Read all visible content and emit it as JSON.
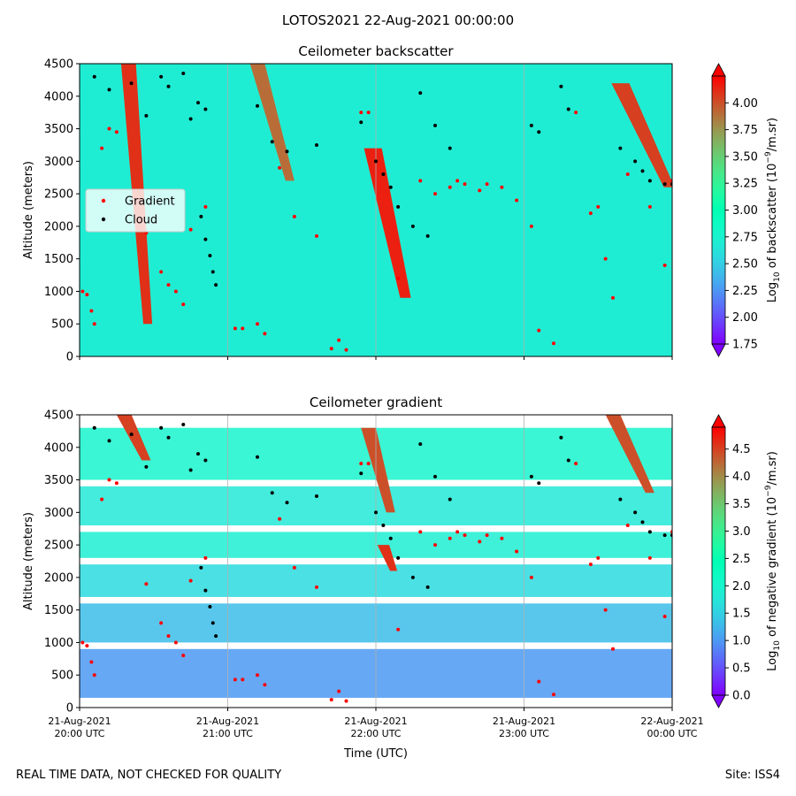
{
  "figure": {
    "title": "LOTOS2021 22-Aug-2021 00:00:00",
    "footer_left": "REAL TIME DATA, NOT CHECKED FOR QUALITY",
    "footer_right": "Site: ISS4"
  },
  "chart_data": [
    {
      "type": "heatmap",
      "title": "Ceilometer backscatter",
      "xlabel": "",
      "ylabel": "Altitude (meters)",
      "x_ticks": [
        "21-Aug-2021\n20:00 UTC",
        "21-Aug-2021\n21:00 UTC",
        "21-Aug-2021\n22:00 UTC",
        "21-Aug-2021\n23:00 UTC",
        "22-Aug-2021\n00:00 UTC"
      ],
      "x_tick_labels_visible": false,
      "ylim": [
        0,
        4500
      ],
      "y_ticks": [
        0,
        500,
        1000,
        1500,
        2000,
        2500,
        3000,
        3500,
        4000,
        4500
      ],
      "colorbar": {
        "label": "Log10 of backscatter (10^-9/m.sr)",
        "label_parts": [
          "Log",
          "10",
          " of backscatter (10",
          "−9",
          "/m.sr)"
        ],
        "range": [
          1.75,
          4.25
        ],
        "ticks": [
          "1.75",
          "2.00",
          "2.25",
          "2.50",
          "2.75",
          "3.00",
          "3.25",
          "3.50",
          "3.75",
          "4.00"
        ],
        "colormap": "rainbow",
        "extend": "both"
      },
      "legend": {
        "placement": "center-left",
        "entries": [
          {
            "label": "Gradient",
            "color": "#ff0000"
          },
          {
            "label": "Cloud",
            "color": "#000000"
          }
        ]
      },
      "background_level": 2.7,
      "plumes": [
        {
          "time_start": 0.33,
          "alt_start": 4500,
          "time_end": 0.46,
          "alt_end": 500,
          "value": 4.1,
          "width": 0.05
        },
        {
          "time_start": 1.98,
          "alt_start": 3200,
          "time_end": 2.2,
          "alt_end": 900,
          "value": 4.15,
          "width": 0.06
        },
        {
          "time_start": 1.2,
          "alt_start": 4500,
          "time_end": 1.42,
          "alt_end": 2700,
          "value": 3.9,
          "width": 0.05
        },
        {
          "time_start": 3.65,
          "alt_start": 4200,
          "time_end": 3.98,
          "alt_end": 2600,
          "value": 4.05,
          "width": 0.06
        }
      ],
      "gradient_points": [
        [
          0.02,
          1000
        ],
        [
          0.05,
          950
        ],
        [
          0.08,
          700
        ],
        [
          0.1,
          500
        ],
        [
          0.15,
          3200
        ],
        [
          0.2,
          3500
        ],
        [
          0.25,
          3450
        ],
        [
          0.45,
          1900
        ],
        [
          0.55,
          1300
        ],
        [
          0.6,
          1100
        ],
        [
          0.65,
          1000
        ],
        [
          0.7,
          800
        ],
        [
          0.75,
          1950
        ],
        [
          0.85,
          2300
        ],
        [
          1.05,
          430
        ],
        [
          1.1,
          430
        ],
        [
          1.2,
          500
        ],
        [
          1.25,
          350
        ],
        [
          1.35,
          2900
        ],
        [
          1.45,
          2150
        ],
        [
          1.6,
          1850
        ],
        [
          1.7,
          120
        ],
        [
          1.75,
          250
        ],
        [
          1.8,
          100
        ],
        [
          1.9,
          3750
        ],
        [
          1.95,
          3750
        ],
        [
          2.15,
          1200
        ],
        [
          2.3,
          2700
        ],
        [
          2.4,
          2500
        ],
        [
          2.5,
          2600
        ],
        [
          2.55,
          2700
        ],
        [
          2.6,
          2650
        ],
        [
          2.7,
          2550
        ],
        [
          2.75,
          2650
        ],
        [
          2.85,
          2600
        ],
        [
          2.95,
          2400
        ],
        [
          3.05,
          2000
        ],
        [
          3.1,
          400
        ],
        [
          3.2,
          200
        ],
        [
          3.35,
          3750
        ],
        [
          3.45,
          2200
        ],
        [
          3.5,
          2300
        ],
        [
          3.55,
          1500
        ],
        [
          3.6,
          900
        ],
        [
          3.7,
          2800
        ],
        [
          3.85,
          2300
        ],
        [
          3.95,
          1400
        ],
        [
          4.0,
          2700
        ]
      ],
      "cloud_points": [
        [
          0.1,
          4300
        ],
        [
          0.2,
          4100
        ],
        [
          0.35,
          4200
        ],
        [
          0.45,
          3700
        ],
        [
          0.55,
          4300
        ],
        [
          0.6,
          4150
        ],
        [
          0.7,
          4350
        ],
        [
          0.8,
          3900
        ],
        [
          0.85,
          3800
        ],
        [
          0.75,
          3650
        ],
        [
          0.82,
          2150
        ],
        [
          0.85,
          1800
        ],
        [
          0.88,
          1550
        ],
        [
          0.9,
          1300
        ],
        [
          0.92,
          1100
        ],
        [
          1.2,
          3850
        ],
        [
          1.3,
          3300
        ],
        [
          1.4,
          3150
        ],
        [
          1.6,
          3250
        ],
        [
          1.9,
          3600
        ],
        [
          2.0,
          3000
        ],
        [
          2.05,
          2800
        ],
        [
          2.1,
          2600
        ],
        [
          2.15,
          2300
        ],
        [
          2.25,
          2000
        ],
        [
          2.35,
          1850
        ],
        [
          2.3,
          4050
        ],
        [
          2.4,
          3550
        ],
        [
          2.5,
          3200
        ],
        [
          3.05,
          3550
        ],
        [
          3.1,
          3450
        ],
        [
          3.25,
          4150
        ],
        [
          3.3,
          3800
        ],
        [
          3.65,
          3200
        ],
        [
          3.75,
          3000
        ],
        [
          3.8,
          2850
        ],
        [
          3.85,
          2700
        ],
        [
          3.95,
          2650
        ],
        [
          4.0,
          2650
        ]
      ]
    },
    {
      "type": "heatmap",
      "title": "Ceilometer gradient",
      "xlabel": "Time (UTC)",
      "ylabel": "Altitude (meters)",
      "x_ticks": [
        "21-Aug-2021\n20:00 UTC",
        "21-Aug-2021\n21:00 UTC",
        "21-Aug-2021\n22:00 UTC",
        "21-Aug-2021\n23:00 UTC",
        "22-Aug-2021\n00:00 UTC"
      ],
      "x_tick_labels_visible": true,
      "ylim": [
        0,
        4500
      ],
      "y_ticks": [
        0,
        500,
        1000,
        1500,
        2000,
        2500,
        3000,
        3500,
        4000,
        4500
      ],
      "colorbar": {
        "label": "Log10 of negative gradient (10^-9/m.sr)",
        "label_parts": [
          "Log",
          "10",
          " of negative gradient (10",
          "−9",
          "/m.sr)"
        ],
        "range": [
          0.0,
          4.9
        ],
        "ticks": [
          "0.0",
          "0.5",
          "1.0",
          "1.5",
          "2.0",
          "2.5",
          "3.0",
          "3.5",
          "4.0",
          "4.5"
        ],
        "colormap": "rainbow",
        "extend": "both"
      },
      "bands": [
        {
          "alt_low": 150,
          "alt_high": 900,
          "value": 1.0
        },
        {
          "alt_low": 1000,
          "alt_high": 1600,
          "value": 1.3
        },
        {
          "alt_low": 1700,
          "alt_high": 2200,
          "value": 1.6
        },
        {
          "alt_low": 2300,
          "alt_high": 2700,
          "value": 1.9
        },
        {
          "alt_low": 2800,
          "alt_high": 3400,
          "value": 1.8
        },
        {
          "alt_low": 3500,
          "alt_high": 4300,
          "value": 2.0
        }
      ],
      "plumes": [
        {
          "time_start": 0.3,
          "alt_start": 4500,
          "time_end": 0.45,
          "alt_end": 3800,
          "value": 4.5,
          "width": 0.05
        },
        {
          "time_start": 1.95,
          "alt_start": 4300,
          "time_end": 2.1,
          "alt_end": 3000,
          "value": 4.4,
          "width": 0.05
        },
        {
          "time_start": 2.05,
          "alt_start": 2500,
          "time_end": 2.12,
          "alt_end": 2100,
          "value": 4.6,
          "width": 0.04
        },
        {
          "time_start": 3.6,
          "alt_start": 4500,
          "time_end": 3.85,
          "alt_end": 3300,
          "value": 4.4,
          "width": 0.05
        }
      ],
      "gradient_points": [
        [
          0.02,
          1000
        ],
        [
          0.05,
          950
        ],
        [
          0.08,
          700
        ],
        [
          0.1,
          500
        ],
        [
          0.15,
          3200
        ],
        [
          0.2,
          3500
        ],
        [
          0.25,
          3450
        ],
        [
          0.45,
          1900
        ],
        [
          0.55,
          1300
        ],
        [
          0.6,
          1100
        ],
        [
          0.65,
          1000
        ],
        [
          0.7,
          800
        ],
        [
          0.75,
          1950
        ],
        [
          0.85,
          2300
        ],
        [
          1.05,
          430
        ],
        [
          1.1,
          430
        ],
        [
          1.2,
          500
        ],
        [
          1.25,
          350
        ],
        [
          1.35,
          2900
        ],
        [
          1.45,
          2150
        ],
        [
          1.6,
          1850
        ],
        [
          1.7,
          120
        ],
        [
          1.75,
          250
        ],
        [
          1.8,
          100
        ],
        [
          1.9,
          3750
        ],
        [
          1.95,
          3750
        ],
        [
          2.15,
          1200
        ],
        [
          2.3,
          2700
        ],
        [
          2.4,
          2500
        ],
        [
          2.5,
          2600
        ],
        [
          2.55,
          2700
        ],
        [
          2.6,
          2650
        ],
        [
          2.7,
          2550
        ],
        [
          2.75,
          2650
        ],
        [
          2.85,
          2600
        ],
        [
          2.95,
          2400
        ],
        [
          3.05,
          2000
        ],
        [
          3.1,
          400
        ],
        [
          3.2,
          200
        ],
        [
          3.35,
          3750
        ],
        [
          3.45,
          2200
        ],
        [
          3.5,
          2300
        ],
        [
          3.55,
          1500
        ],
        [
          3.6,
          900
        ],
        [
          3.7,
          2800
        ],
        [
          3.85,
          2300
        ],
        [
          3.95,
          1400
        ],
        [
          4.0,
          2700
        ]
      ],
      "cloud_points": [
        [
          0.1,
          4300
        ],
        [
          0.2,
          4100
        ],
        [
          0.35,
          4200
        ],
        [
          0.45,
          3700
        ],
        [
          0.55,
          4300
        ],
        [
          0.6,
          4150
        ],
        [
          0.7,
          4350
        ],
        [
          0.8,
          3900
        ],
        [
          0.85,
          3800
        ],
        [
          0.75,
          3650
        ],
        [
          0.82,
          2150
        ],
        [
          0.85,
          1800
        ],
        [
          0.88,
          1550
        ],
        [
          0.9,
          1300
        ],
        [
          0.92,
          1100
        ],
        [
          1.2,
          3850
        ],
        [
          1.3,
          3300
        ],
        [
          1.4,
          3150
        ],
        [
          1.6,
          3250
        ],
        [
          1.9,
          3600
        ],
        [
          2.0,
          3000
        ],
        [
          2.05,
          2800
        ],
        [
          2.1,
          2600
        ],
        [
          2.15,
          2300
        ],
        [
          2.25,
          2000
        ],
        [
          2.35,
          1850
        ],
        [
          2.3,
          4050
        ],
        [
          2.4,
          3550
        ],
        [
          2.5,
          3200
        ],
        [
          3.05,
          3550
        ],
        [
          3.1,
          3450
        ],
        [
          3.25,
          4150
        ],
        [
          3.3,
          3800
        ],
        [
          3.65,
          3200
        ],
        [
          3.75,
          3000
        ],
        [
          3.8,
          2850
        ],
        [
          3.85,
          2700
        ],
        [
          3.95,
          2650
        ],
        [
          4.0,
          2650
        ]
      ]
    }
  ]
}
